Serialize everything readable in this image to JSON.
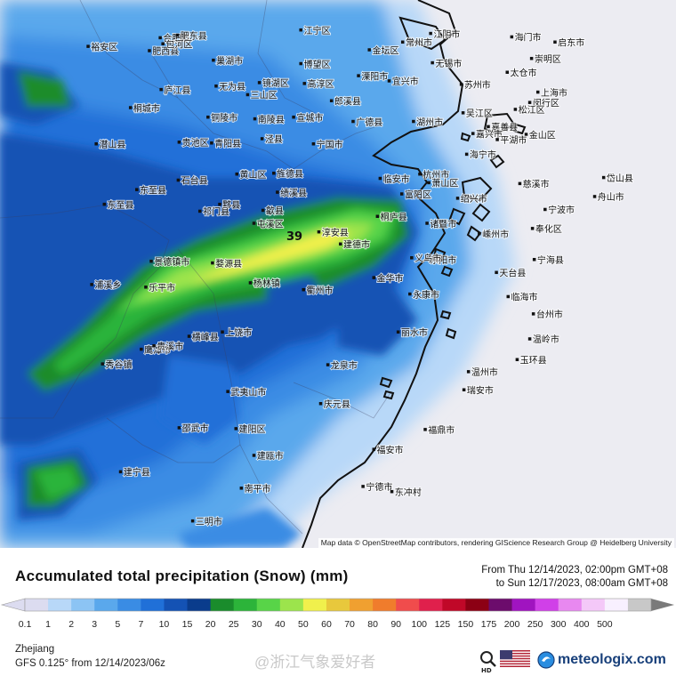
{
  "map": {
    "peak_value": "39",
    "attribution": "Map data © OpenStreetMap contributors, rendering GIScience Research Group @ Heidelberg University",
    "cities": [
      {
        "name": "合肥市",
        "lon": 117.28,
        "lat": 31.86
      },
      {
        "name": "肥东县",
        "lon": 117.47,
        "lat": 31.89
      },
      {
        "name": "裕安区",
        "lon": 116.48,
        "lat": 31.76
      },
      {
        "name": "肥西县",
        "lon": 117.16,
        "lat": 31.71
      },
      {
        "name": "包河区",
        "lon": 117.31,
        "lat": 31.79
      },
      {
        "name": "巢湖市",
        "lon": 117.87,
        "lat": 31.6
      },
      {
        "name": "江宁区",
        "lon": 118.84,
        "lat": 31.95
      },
      {
        "name": "博望区",
        "lon": 118.84,
        "lat": 31.56
      },
      {
        "name": "常州市",
        "lon": 119.97,
        "lat": 31.81
      },
      {
        "name": "金坛区",
        "lon": 119.6,
        "lat": 31.72
      },
      {
        "name": "江阴市",
        "lon": 120.28,
        "lat": 31.91
      },
      {
        "name": "海门市",
        "lon": 121.18,
        "lat": 31.87
      },
      {
        "name": "启东市",
        "lon": 121.66,
        "lat": 31.81
      },
      {
        "name": "崇明区",
        "lon": 121.4,
        "lat": 31.62
      },
      {
        "name": "无锡市",
        "lon": 120.3,
        "lat": 31.57
      },
      {
        "name": "太仓市",
        "lon": 121.13,
        "lat": 31.46
      },
      {
        "name": "庐江县",
        "lon": 117.29,
        "lat": 31.26
      },
      {
        "name": "无为县",
        "lon": 117.9,
        "lat": 31.3
      },
      {
        "name": "镜湖区",
        "lon": 118.38,
        "lat": 31.34
      },
      {
        "name": "高淳区",
        "lon": 118.88,
        "lat": 31.33
      },
      {
        "name": "溧阳市",
        "lon": 119.48,
        "lat": 31.42
      },
      {
        "name": "宜兴市",
        "lon": 119.82,
        "lat": 31.36
      },
      {
        "name": "苏州市",
        "lon": 120.62,
        "lat": 31.32
      },
      {
        "name": "闵行区",
        "lon": 121.38,
        "lat": 31.11
      },
      {
        "name": "上海市",
        "lon": 121.47,
        "lat": 31.23
      },
      {
        "name": "松江区",
        "lon": 121.22,
        "lat": 31.03
      },
      {
        "name": "桐城市",
        "lon": 116.95,
        "lat": 31.05
      },
      {
        "name": "三山区",
        "lon": 118.25,
        "lat": 31.2
      },
      {
        "name": "郎溪县",
        "lon": 119.18,
        "lat": 31.13
      },
      {
        "name": "铜陵市",
        "lon": 117.81,
        "lat": 30.94
      },
      {
        "name": "南陵县",
        "lon": 118.33,
        "lat": 30.92
      },
      {
        "name": "宣城市",
        "lon": 118.76,
        "lat": 30.94
      },
      {
        "name": "广德县",
        "lon": 119.42,
        "lat": 30.89
      },
      {
        "name": "湖州市",
        "lon": 120.09,
        "lat": 30.89
      },
      {
        "name": "吴江区",
        "lon": 120.64,
        "lat": 30.99
      },
      {
        "name": "嘉善县",
        "lon": 120.92,
        "lat": 30.83
      },
      {
        "name": "金山区",
        "lon": 121.34,
        "lat": 30.74
      },
      {
        "name": "潜山县",
        "lon": 116.57,
        "lat": 30.63
      },
      {
        "name": "贵池区",
        "lon": 117.49,
        "lat": 30.65
      },
      {
        "name": "青阳县",
        "lon": 117.85,
        "lat": 30.64
      },
      {
        "name": "泾县",
        "lon": 118.41,
        "lat": 30.69
      },
      {
        "name": "宁国市",
        "lon": 118.98,
        "lat": 30.63
      },
      {
        "name": "嘉兴市",
        "lon": 120.75,
        "lat": 30.75
      },
      {
        "name": "平湖市",
        "lon": 121.02,
        "lat": 30.68
      },
      {
        "name": "海宁市",
        "lon": 120.68,
        "lat": 30.51
      },
      {
        "name": "东至县",
        "lon": 117.02,
        "lat": 30.1
      },
      {
        "name": "黄山区",
        "lon": 118.13,
        "lat": 30.28
      },
      {
        "name": "旌德县",
        "lon": 118.54,
        "lat": 30.29
      },
      {
        "name": "临安市",
        "lon": 119.72,
        "lat": 30.23
      },
      {
        "name": "杭州市",
        "lon": 120.16,
        "lat": 30.28
      },
      {
        "name": "慈溪市",
        "lon": 121.27,
        "lat": 30.17
      },
      {
        "name": "石台县",
        "lon": 117.48,
        "lat": 30.21
      },
      {
        "name": "绩溪县",
        "lon": 118.58,
        "lat": 30.07
      },
      {
        "name": "富阳区",
        "lon": 119.96,
        "lat": 30.05
      },
      {
        "name": "萧山区",
        "lon": 120.26,
        "lat": 30.18
      },
      {
        "name": "岱山县",
        "lon": 122.2,
        "lat": 30.24
      },
      {
        "name": "东至县",
        "lon": 116.66,
        "lat": 29.93
      },
      {
        "name": "黟县",
        "lon": 117.94,
        "lat": 29.93
      },
      {
        "name": "歙县",
        "lon": 118.42,
        "lat": 29.86
      },
      {
        "name": "绍兴市",
        "lon": 120.58,
        "lat": 30.0
      },
      {
        "name": "宁波市",
        "lon": 121.55,
        "lat": 29.87
      },
      {
        "name": "舟山市",
        "lon": 122.1,
        "lat": 30.02
      },
      {
        "name": "祁门县",
        "lon": 117.72,
        "lat": 29.85
      },
      {
        "name": "屯溪区",
        "lon": 118.32,
        "lat": 29.71
      },
      {
        "name": "桐庐县",
        "lon": 119.69,
        "lat": 29.79
      },
      {
        "name": "诸暨市",
        "lon": 120.24,
        "lat": 29.71
      },
      {
        "name": "嵊州市",
        "lon": 120.82,
        "lat": 29.59
      },
      {
        "name": "奉化区",
        "lon": 121.41,
        "lat": 29.65
      },
      {
        "name": "淳安县",
        "lon": 119.04,
        "lat": 29.61
      },
      {
        "name": "建德市",
        "lon": 119.28,
        "lat": 29.47
      },
      {
        "name": "景德镇市",
        "lon": 117.18,
        "lat": 29.27
      },
      {
        "name": "东阳市",
        "lon": 120.24,
        "lat": 29.29
      },
      {
        "name": "宁海县",
        "lon": 121.43,
        "lat": 29.29
      },
      {
        "name": "义乌市",
        "lon": 120.07,
        "lat": 29.31
      },
      {
        "name": "天台县",
        "lon": 121.01,
        "lat": 29.14
      },
      {
        "name": "婺源县",
        "lon": 117.86,
        "lat": 29.25
      },
      {
        "name": "金华市",
        "lon": 119.65,
        "lat": 29.08
      },
      {
        "name": "杨林镇",
        "lon": 118.28,
        "lat": 29.02
      },
      {
        "name": "衢州市",
        "lon": 118.87,
        "lat": 28.94
      },
      {
        "name": "乐平市",
        "lon": 117.12,
        "lat": 28.97
      },
      {
        "name": "永康市",
        "lon": 120.05,
        "lat": 28.89
      },
      {
        "name": "临海市",
        "lon": 121.14,
        "lat": 28.86
      },
      {
        "name": "浦溪乡",
        "lon": 116.52,
        "lat": 29.0
      },
      {
        "name": "台州市",
        "lon": 121.42,
        "lat": 28.66
      },
      {
        "name": "上饶市",
        "lon": 117.97,
        "lat": 28.45
      },
      {
        "name": "丽水市",
        "lon": 119.92,
        "lat": 28.45
      },
      {
        "name": "温岭市",
        "lon": 121.38,
        "lat": 28.37
      },
      {
        "name": "鹰潭市",
        "lon": 117.07,
        "lat": 28.25
      },
      {
        "name": "横峰县",
        "lon": 117.6,
        "lat": 28.4
      },
      {
        "name": "玉环县",
        "lon": 121.24,
        "lat": 28.13
      },
      {
        "name": "龙泉市",
        "lon": 119.14,
        "lat": 28.07
      },
      {
        "name": "温州市",
        "lon": 120.7,
        "lat": 27.99
      },
      {
        "name": "贵溪市",
        "lon": 117.21,
        "lat": 28.29
      },
      {
        "name": "秀谷镇",
        "lon": 116.64,
        "lat": 28.08
      },
      {
        "name": "武夷山市",
        "lon": 118.03,
        "lat": 27.76
      },
      {
        "name": "瑞安市",
        "lon": 120.65,
        "lat": 27.78
      },
      {
        "name": "庆元县",
        "lon": 119.06,
        "lat": 27.62
      },
      {
        "name": "邵武市",
        "lon": 117.49,
        "lat": 27.34
      },
      {
        "name": "建阳区",
        "lon": 118.12,
        "lat": 27.33
      },
      {
        "name": "福鼎市",
        "lon": 120.22,
        "lat": 27.32
      },
      {
        "name": "建瓯市",
        "lon": 118.32,
        "lat": 27.02
      },
      {
        "name": "福安市",
        "lon": 119.65,
        "lat": 27.09
      },
      {
        "name": "建宁县",
        "lon": 116.84,
        "lat": 26.83
      },
      {
        "name": "宁德市",
        "lon": 119.53,
        "lat": 26.66
      },
      {
        "name": "南平市",
        "lon": 118.18,
        "lat": 26.64
      },
      {
        "name": "三明市",
        "lon": 117.64,
        "lat": 26.26
      },
      {
        "name": "东冲村",
        "lon": 119.85,
        "lat": 26.6
      }
    ]
  },
  "legend": {
    "title": "Accumulated total precipitation (Snow) (mm)",
    "period_from": "From Thu 12/14/2023, 02:00pm GMT+08",
    "period_to": "to Sun 12/17/2023, 08:00am GMT+08",
    "ticks": [
      "0.1",
      "1",
      "2",
      "3",
      "5",
      "7",
      "10",
      "15",
      "20",
      "25",
      "30",
      "40",
      "50",
      "60",
      "70",
      "80",
      "90",
      "100",
      "125",
      "150",
      "175",
      "200",
      "250",
      "300",
      "400",
      "500"
    ],
    "colors": [
      "#dcdcf0",
      "#b8d8f8",
      "#8cc4f4",
      "#5aa8ec",
      "#3a8ce4",
      "#2070d8",
      "#1452b4",
      "#0a3c8c",
      "#1a8c2c",
      "#2cb43a",
      "#58d448",
      "#9ce44c",
      "#f0f04c",
      "#e8c83c",
      "#f0a030",
      "#f07c2c",
      "#f04c4c",
      "#e0204c",
      "#c00828",
      "#8c0014",
      "#6c0c6c",
      "#a014c0",
      "#d040e8",
      "#e888f0",
      "#f4c8f8",
      "#f8f0ff",
      "#c8c8c8"
    ]
  },
  "footer": {
    "region": "Zhejiang",
    "model_run": "GFS 0.125° from  12/14/2023/06z",
    "watermark": "@浙江气象爱好者",
    "brand": "meteologix.com"
  }
}
